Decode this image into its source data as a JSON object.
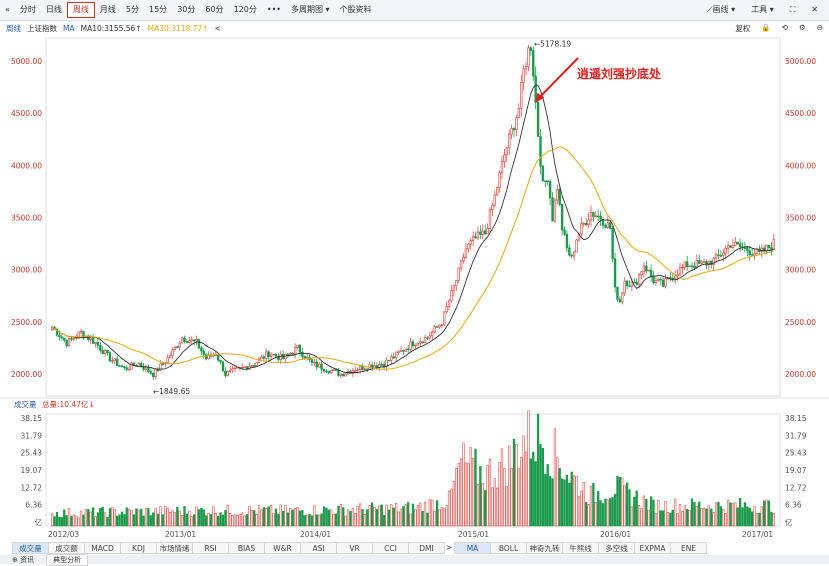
{
  "toolbar": {
    "collapse_icon": "«",
    "items": [
      "分时",
      "日线",
      "周线",
      "月线",
      "5分",
      "15分",
      "30分",
      "60分",
      "120分",
      "•••",
      "多周期图 ▾",
      "个股资料"
    ],
    "active_index": 2,
    "right": [
      "⟋画线 ▾",
      "工具 ▾",
      "⛶",
      "✕"
    ]
  },
  "infobar": {
    "period": "周线",
    "name": "上证指数",
    "indicator": "MA",
    "ma10": "MA10:3155.56↑",
    "ma30": "MA30:3118.77↑",
    "back": "<",
    "right": [
      "复权",
      "🔒",
      "⟲",
      "⚙",
      "⊖"
    ]
  },
  "chart_data": {
    "type": "candlestick",
    "y_ticks": [
      "5000.00",
      "4500.00",
      "4000.00",
      "3500.00",
      "3000.00",
      "2500.00",
      "2000.00"
    ],
    "ylim": [
      1790,
      5220
    ],
    "x_ticks": [
      "2012/03",
      "2013/01",
      "2014/01",
      "2015/01",
      "2016/01",
      "2017/01"
    ],
    "annotation_high": "←5178.19",
    "annotation_low": "←1849.65",
    "callout": "逍遥刘强抄底处",
    "volume_label": "成交量",
    "volume_total": "总量:10.47亿↓",
    "volume_ticks": [
      "38.15",
      "31.79",
      "25.43",
      "19.07",
      "12.72",
      "6.36",
      "亿"
    ],
    "volume_max": 38.15,
    "colors": {
      "up": "#d9534f",
      "down": "#1a9a4a",
      "ma10": "#333333",
      "ma30": "#e6a817",
      "axis_text": "#c0392b"
    },
    "anchors": [
      [
        0,
        2450
      ],
      [
        6,
        2300
      ],
      [
        12,
        2400
      ],
      [
        18,
        2300
      ],
      [
        24,
        2150
      ],
      [
        30,
        2050
      ],
      [
        36,
        2100
      ],
      [
        42,
        2000
      ],
      [
        48,
        2150
      ],
      [
        54,
        2350
      ],
      [
        60,
        2300
      ],
      [
        64,
        2150
      ],
      [
        68,
        2200
      ],
      [
        72,
        2000
      ],
      [
        78,
        2050
      ],
      [
        84,
        2100
      ],
      [
        90,
        2200
      ],
      [
        96,
        2150
      ],
      [
        102,
        2250
      ],
      [
        108,
        2100
      ],
      [
        114,
        2050
      ],
      [
        120,
        2000
      ],
      [
        126,
        2050
      ],
      [
        132,
        2080
      ],
      [
        138,
        2100
      ],
      [
        144,
        2200
      ],
      [
        150,
        2300
      ],
      [
        156,
        2350
      ],
      [
        162,
        2500
      ],
      [
        168,
        2900
      ],
      [
        172,
        3200
      ],
      [
        176,
        3300
      ],
      [
        180,
        3350
      ],
      [
        184,
        3700
      ],
      [
        188,
        4100
      ],
      [
        192,
        4400
      ],
      [
        194,
        4550
      ],
      [
        196,
        4900
      ],
      [
        198,
        5100
      ],
      [
        199,
        5150
      ],
      [
        200,
        4900
      ],
      [
        202,
        4300
      ],
      [
        204,
        3800
      ],
      [
        206,
        3900
      ],
      [
        208,
        3500
      ],
      [
        210,
        3800
      ],
      [
        212,
        3400
      ],
      [
        214,
        3200
      ],
      [
        216,
        3100
      ],
      [
        218,
        3300
      ],
      [
        220,
        3400
      ],
      [
        224,
        3550
      ],
      [
        228,
        3500
      ],
      [
        232,
        3400
      ],
      [
        234,
        2800
      ],
      [
        236,
        2700
      ],
      [
        238,
        2900
      ],
      [
        242,
        2850
      ],
      [
        246,
        3050
      ],
      [
        250,
        2900
      ],
      [
        254,
        2850
      ],
      [
        258,
        2950
      ],
      [
        264,
        3050
      ],
      [
        270,
        3050
      ],
      [
        276,
        3100
      ],
      [
        282,
        3250
      ],
      [
        288,
        3200
      ],
      [
        294,
        3150
      ],
      [
        300,
        3250
      ]
    ],
    "volume_profile": [
      [
        0,
        5
      ],
      [
        60,
        6
      ],
      [
        100,
        6
      ],
      [
        150,
        7
      ],
      [
        165,
        10
      ],
      [
        170,
        25
      ],
      [
        180,
        20
      ],
      [
        190,
        25
      ],
      [
        195,
        33
      ],
      [
        200,
        35
      ],
      [
        205,
        33
      ],
      [
        215,
        20
      ],
      [
        224,
        12
      ],
      [
        234,
        15
      ],
      [
        250,
        8
      ],
      [
        300,
        8
      ]
    ]
  },
  "tabs": {
    "items": [
      "成交量",
      "成交额",
      "MACD",
      "KDJ",
      "市场情绪",
      "RSI",
      "BIAS",
      "W&R",
      "ASI",
      "VR",
      "CCI",
      "DMI",
      ">",
      "MA",
      "BOLL",
      "神奇九转",
      "牛熊线",
      "多空线",
      "EXPMA",
      "ENE"
    ],
    "active": [
      0,
      13
    ]
  },
  "bottom": {
    "left": "⊕  资讯",
    "tab": "典型分析"
  }
}
